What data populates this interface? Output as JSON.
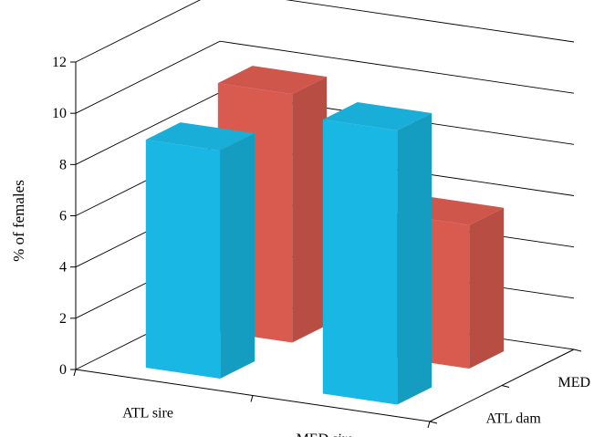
{
  "chart_data": {
    "type": "bar",
    "style": "3d-clustered",
    "x_categories": [
      "ATL sire",
      "MED sire"
    ],
    "depth_categories": [
      "ATL dam",
      "MED dam"
    ],
    "ylabel": "% of females",
    "ylim": [
      0,
      12
    ],
    "yticks": [
      0,
      2,
      4,
      6,
      8,
      10,
      12
    ],
    "grid": true,
    "series": [
      {
        "name": "ATL dam",
        "values": [
          8.9,
          10.7
        ]
      },
      {
        "name": "MED dam",
        "values": [
          9.7,
          5.6
        ]
      }
    ]
  },
  "colors": {
    "ATL dam": "#19b7e3",
    "MED dam": "#d95b4f",
    "axis": "#000000",
    "grid": "#000000"
  }
}
